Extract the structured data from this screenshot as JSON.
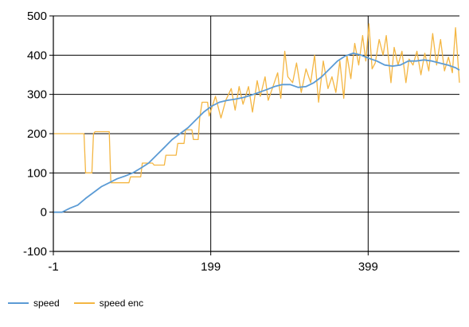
{
  "chart_data": {
    "type": "line",
    "title": "",
    "xlabel": "",
    "ylabel": "",
    "xlim": [
      -1,
      515
    ],
    "ylim": [
      -100,
      500
    ],
    "x_ticks": [
      -1,
      199,
      399
    ],
    "x_tick_labels": [
      "-1",
      "199",
      "399"
    ],
    "y_ticks": [
      -100,
      0,
      100,
      200,
      300,
      400,
      500
    ],
    "y_tick_labels": [
      "-100",
      "0",
      "100",
      "200",
      "300",
      "400",
      "500"
    ],
    "grid": true,
    "legend_position": "bottom-left",
    "series": [
      {
        "name": "speed",
        "color": "#5b9bd5",
        "points": [
          [
            -1,
            0
          ],
          [
            10,
            0
          ],
          [
            20,
            10
          ],
          [
            30,
            18
          ],
          [
            40,
            35
          ],
          [
            50,
            50
          ],
          [
            60,
            65
          ],
          [
            70,
            75
          ],
          [
            80,
            85
          ],
          [
            90,
            92
          ],
          [
            100,
            100
          ],
          [
            110,
            112
          ],
          [
            120,
            125
          ],
          [
            130,
            145
          ],
          [
            140,
            165
          ],
          [
            150,
            185
          ],
          [
            160,
            200
          ],
          [
            170,
            215
          ],
          [
            180,
            235
          ],
          [
            190,
            255
          ],
          [
            200,
            270
          ],
          [
            210,
            280
          ],
          [
            220,
            285
          ],
          [
            230,
            288
          ],
          [
            240,
            292
          ],
          [
            250,
            298
          ],
          [
            260,
            305
          ],
          [
            270,
            312
          ],
          [
            280,
            320
          ],
          [
            290,
            325
          ],
          [
            300,
            325
          ],
          [
            310,
            318
          ],
          [
            320,
            320
          ],
          [
            330,
            330
          ],
          [
            340,
            345
          ],
          [
            350,
            365
          ],
          [
            360,
            385
          ],
          [
            370,
            398
          ],
          [
            380,
            405
          ],
          [
            390,
            400
          ],
          [
            400,
            392
          ],
          [
            410,
            385
          ],
          [
            420,
            375
          ],
          [
            430,
            372
          ],
          [
            440,
            375
          ],
          [
            450,
            385
          ],
          [
            460,
            385
          ],
          [
            470,
            388
          ],
          [
            480,
            385
          ],
          [
            490,
            380
          ],
          [
            500,
            375
          ],
          [
            510,
            368
          ],
          [
            515,
            362
          ]
        ]
      },
      {
        "name": "speed enc",
        "color": "#f4b642",
        "points": [
          [
            -1,
            200
          ],
          [
            38,
            200
          ],
          [
            40,
            100
          ],
          [
            48,
            100
          ],
          [
            50,
            200
          ],
          [
            52,
            205
          ],
          [
            70,
            205
          ],
          [
            72,
            75
          ],
          [
            95,
            75
          ],
          [
            97,
            90
          ],
          [
            110,
            90
          ],
          [
            112,
            125
          ],
          [
            125,
            125
          ],
          [
            127,
            120
          ],
          [
            140,
            120
          ],
          [
            142,
            145
          ],
          [
            155,
            145
          ],
          [
            157,
            175
          ],
          [
            165,
            175
          ],
          [
            167,
            210
          ],
          [
            175,
            210
          ],
          [
            177,
            185
          ],
          [
            183,
            185
          ],
          [
            185,
            240
          ],
          [
            188,
            280
          ],
          [
            195,
            280
          ],
          [
            197,
            245
          ],
          [
            205,
            295
          ],
          [
            212,
            240
          ],
          [
            218,
            285
          ],
          [
            225,
            315
          ],
          [
            230,
            260
          ],
          [
            235,
            320
          ],
          [
            240,
            275
          ],
          [
            247,
            320
          ],
          [
            252,
            255
          ],
          [
            258,
            335
          ],
          [
            262,
            295
          ],
          [
            268,
            345
          ],
          [
            272,
            285
          ],
          [
            278,
            320
          ],
          [
            284,
            355
          ],
          [
            288,
            290
          ],
          [
            293,
            410
          ],
          [
            297,
            345
          ],
          [
            303,
            330
          ],
          [
            308,
            380
          ],
          [
            314,
            305
          ],
          [
            320,
            365
          ],
          [
            326,
            330
          ],
          [
            331,
            400
          ],
          [
            336,
            280
          ],
          [
            342,
            385
          ],
          [
            348,
            315
          ],
          [
            353,
            345
          ],
          [
            358,
            305
          ],
          [
            363,
            385
          ],
          [
            368,
            290
          ],
          [
            372,
            400
          ],
          [
            377,
            340
          ],
          [
            382,
            430
          ],
          [
            387,
            375
          ],
          [
            392,
            450
          ],
          [
            396,
            385
          ],
          [
            400,
            480
          ],
          [
            404,
            365
          ],
          [
            408,
            380
          ],
          [
            413,
            440
          ],
          [
            418,
            400
          ],
          [
            422,
            450
          ],
          [
            428,
            330
          ],
          [
            432,
            420
          ],
          [
            437,
            375
          ],
          [
            442,
            410
          ],
          [
            447,
            330
          ],
          [
            451,
            390
          ],
          [
            456,
            375
          ],
          [
            461,
            410
          ],
          [
            466,
            350
          ],
          [
            471,
            405
          ],
          [
            476,
            360
          ],
          [
            481,
            455
          ],
          [
            486,
            375
          ],
          [
            491,
            440
          ],
          [
            496,
            360
          ],
          [
            501,
            395
          ],
          [
            506,
            355
          ],
          [
            510,
            470
          ],
          [
            515,
            330
          ]
        ]
      }
    ]
  },
  "legend": {
    "speed_label": "speed",
    "speed_enc_label": "speed enc"
  }
}
